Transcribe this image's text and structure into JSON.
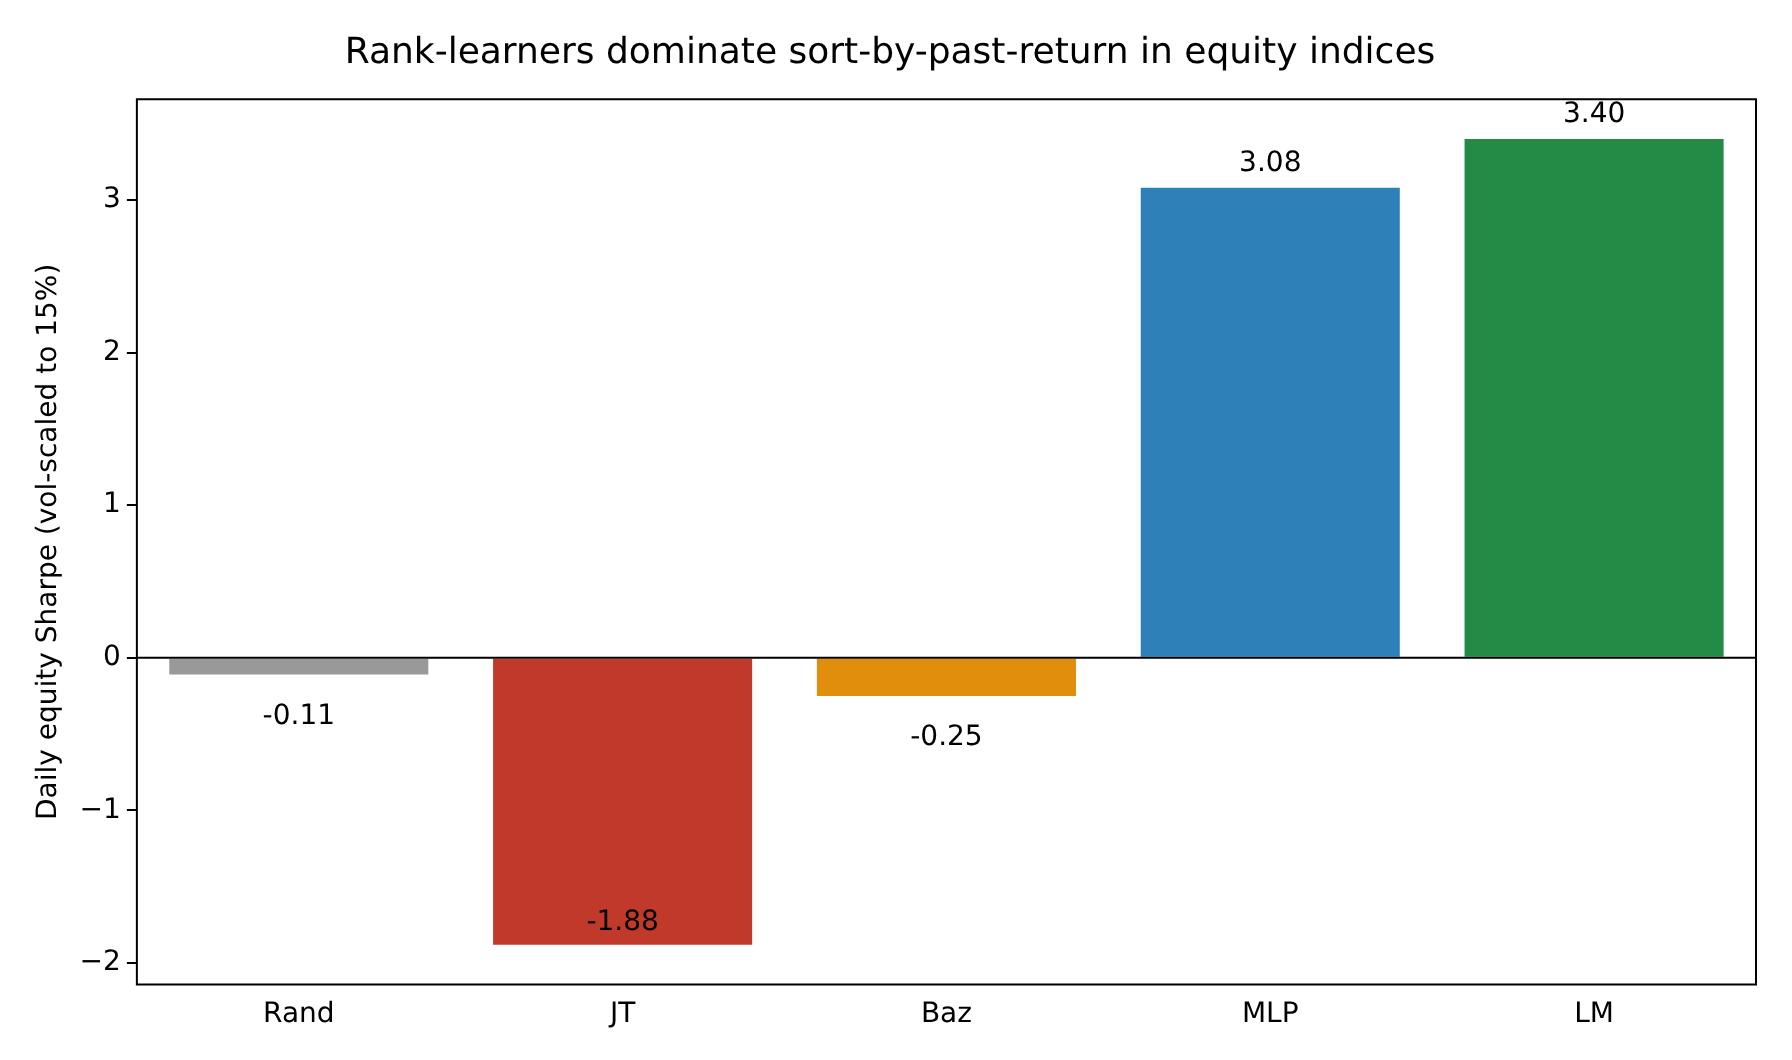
{
  "chart_data": {
    "type": "bar",
    "title": "Rank-learners dominate sort-by-past-return in equity indices",
    "ylabel": "Daily equity Sharpe (vol-scaled to 15%)",
    "categories": [
      "Rand",
      "JT",
      "Baz",
      "MLP",
      "LM"
    ],
    "values": [
      -0.11,
      -1.88,
      -0.25,
      3.08,
      3.4
    ],
    "colors": [
      "#999999",
      "#c0392b",
      "#e08e0b",
      "#2e80b9",
      "#238b45"
    ],
    "value_labels": [
      "-0.11",
      "-1.88",
      "-0.25",
      "3.08",
      "3.40"
    ],
    "ylim": [
      -2.14,
      3.66
    ],
    "yticks": [
      -2,
      -1,
      0,
      1,
      2,
      3
    ],
    "ref_lines": [
      {
        "axis": "y",
        "value": 0,
        "color": "#000000"
      }
    ],
    "grid": false,
    "legend": false
  }
}
